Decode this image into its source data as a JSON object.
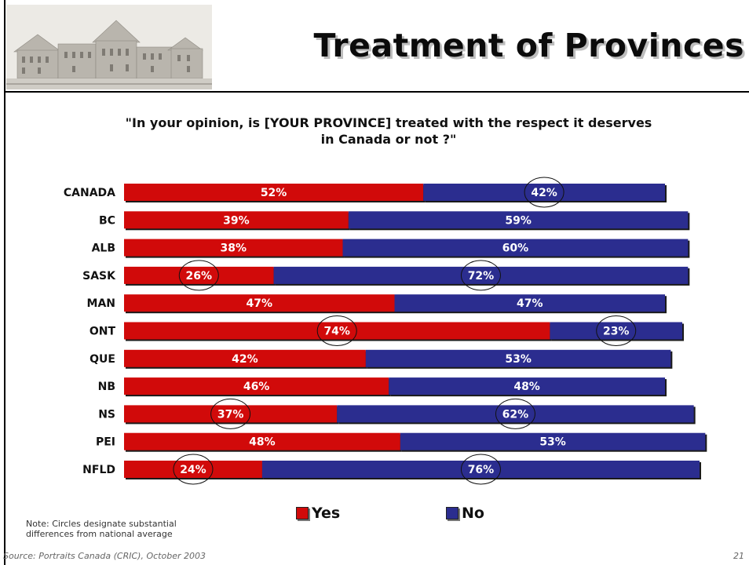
{
  "header": {
    "title": "Treatment of Provinces",
    "image_label": "parliament-building-photo"
  },
  "question": "\"In your opinion, is [YOUR PROVINCE] treated with the respect it deserves in Canada or not ?\"",
  "note": "Note:  Circles designate substantial differences from national average",
  "footer": {
    "source": "Source: Portraits Canada (CRIC), October 2003",
    "page": "21"
  },
  "colors": {
    "yes": "#d10a0a",
    "no": "#2b2d8f",
    "text_on_bar": "#ffffff"
  },
  "chart_data": {
    "type": "bar",
    "orientation": "horizontal",
    "stacked": true,
    "categories": [
      "CANADA",
      "BC",
      "ALB",
      "SASK",
      "MAN",
      "ONT",
      "QUE",
      "NB",
      "NS",
      "PEI",
      "NFLD"
    ],
    "series": [
      {
        "name": "Yes",
        "values": [
          52,
          39,
          38,
          26,
          47,
          74,
          42,
          46,
          37,
          48,
          24
        ],
        "labels": [
          "52%",
          "39%",
          "38%",
          "26%",
          "47%",
          "74%",
          "42%",
          "46%",
          "37%",
          "48%",
          "24%"
        ],
        "circled": [
          false,
          false,
          false,
          true,
          false,
          true,
          false,
          false,
          true,
          false,
          true
        ]
      },
      {
        "name": "No",
        "values": [
          42,
          59,
          60,
          72,
          47,
          23,
          53,
          48,
          62,
          53,
          76
        ],
        "labels": [
          "42%",
          "59%",
          "60%",
          "72%",
          "47%",
          "23%",
          "53%",
          "48%",
          "62%",
          "53%",
          "76%"
        ],
        "circled": [
          true,
          false,
          false,
          true,
          false,
          true,
          false,
          false,
          true,
          false,
          true
        ]
      }
    ],
    "xlim": [
      0,
      100
    ],
    "grid": false,
    "legend": "bottom"
  }
}
